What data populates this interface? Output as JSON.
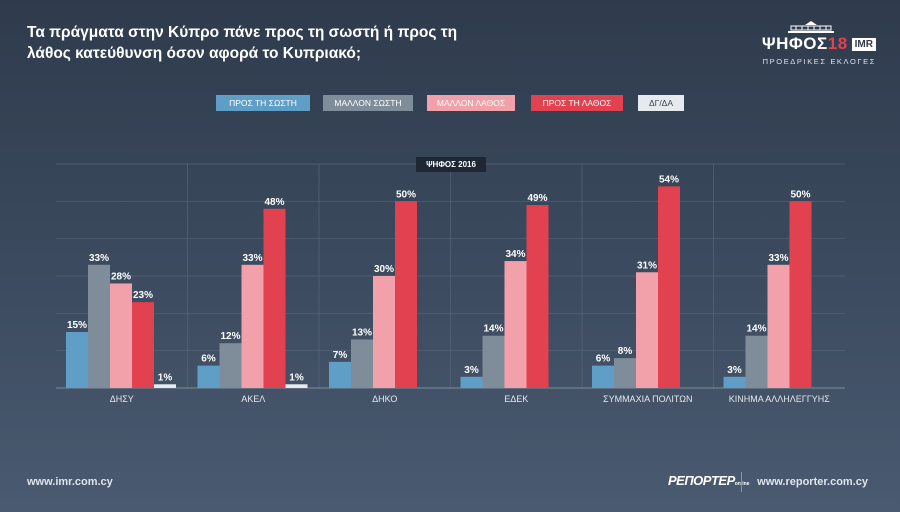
{
  "title": "Τα πράγματα στην Κύπρο πάνε προς τη σωστή ή προς τη λάθος κατεύθυνση όσον αφορά το Κυπριακό;",
  "logo": {
    "main": "ΨΗΦΟΣ",
    "year": "18",
    "badge": "IMR",
    "subtitle": "ΠΡΟΕΔΡΙΚΕΣ ΕΚΛΟΓΕΣ"
  },
  "chart_label": "ΨΗΦΟΣ 2016",
  "footer": {
    "left": "www.imr.com.cy",
    "brand": "ΡΕΠΟΡΤΕΡ",
    "brand_small": "online",
    "right": "www.reporter.com.cy"
  },
  "chart_data": {
    "type": "bar",
    "ylim": [
      0,
      60
    ],
    "grid": true,
    "legend_position": "top",
    "categories": [
      "ΔΗΣΥ",
      "ΑΚΕΛ",
      "ΔΗΚΟ",
      "ΕΔΕΚ",
      "ΣΥΜΜΑΧΙΑ ΠΟΛΙΤΩΝ",
      "ΚΙΝΗΜΑ ΑΛΛΗΛΕΓΓΥΗΣ"
    ],
    "series": [
      {
        "name": "ΠΡΟΣ ΤΗ ΣΩΣΤΗ",
        "color": "#5f9ec6",
        "values": [
          15,
          6,
          7,
          3,
          6,
          3
        ]
      },
      {
        "name": "ΜΑΛΛΟΝ ΣΩΣΤΗ",
        "color": "#7f8c99",
        "values": [
          33,
          12,
          13,
          14,
          8,
          14
        ]
      },
      {
        "name": "ΜΑΛΛΟΝ ΛΑΘΟΣ",
        "color": "#f2a0aa",
        "values": [
          28,
          33,
          30,
          34,
          31,
          33
        ]
      },
      {
        "name": "ΠΡΟΣ ΤΗ ΛΑΘΟΣ",
        "color": "#e2414f",
        "values": [
          23,
          48,
          50,
          49,
          54,
          50
        ]
      },
      {
        "name": "ΔΓ/ΔΑ",
        "color": "#e6e9ee",
        "values": [
          1,
          1,
          null,
          null,
          null,
          null
        ]
      }
    ],
    "value_suffix": "%"
  }
}
